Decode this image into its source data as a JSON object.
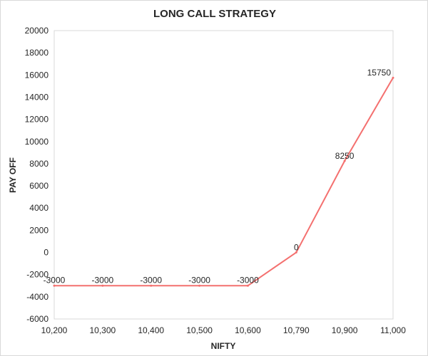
{
  "chart_data": {
    "type": "line",
    "title": "LONG CALL STRATEGY",
    "xlabel": "NIFTY",
    "ylabel": "PAY OFF",
    "categories": [
      "10,200",
      "10,300",
      "10,400",
      "10,500",
      "10,600",
      "10,790",
      "10,900",
      "11,000"
    ],
    "series": [
      {
        "values": [
          -3000,
          -3000,
          -3000,
          -3000,
          -3000,
          0,
          8250,
          15750
        ],
        "data_labels": [
          "-3000",
          "-3000",
          "-3000",
          "-3000",
          "-3000",
          "0",
          "8250",
          "15750"
        ]
      }
    ],
    "ylim": [
      -6000,
      20000
    ],
    "yticks": [
      -6000,
      -4000,
      -2000,
      0,
      2000,
      4000,
      6000,
      8000,
      10000,
      12000,
      14000,
      16000,
      18000,
      20000
    ],
    "line_color": "#f4706f",
    "grid": false,
    "legend": "none"
  }
}
